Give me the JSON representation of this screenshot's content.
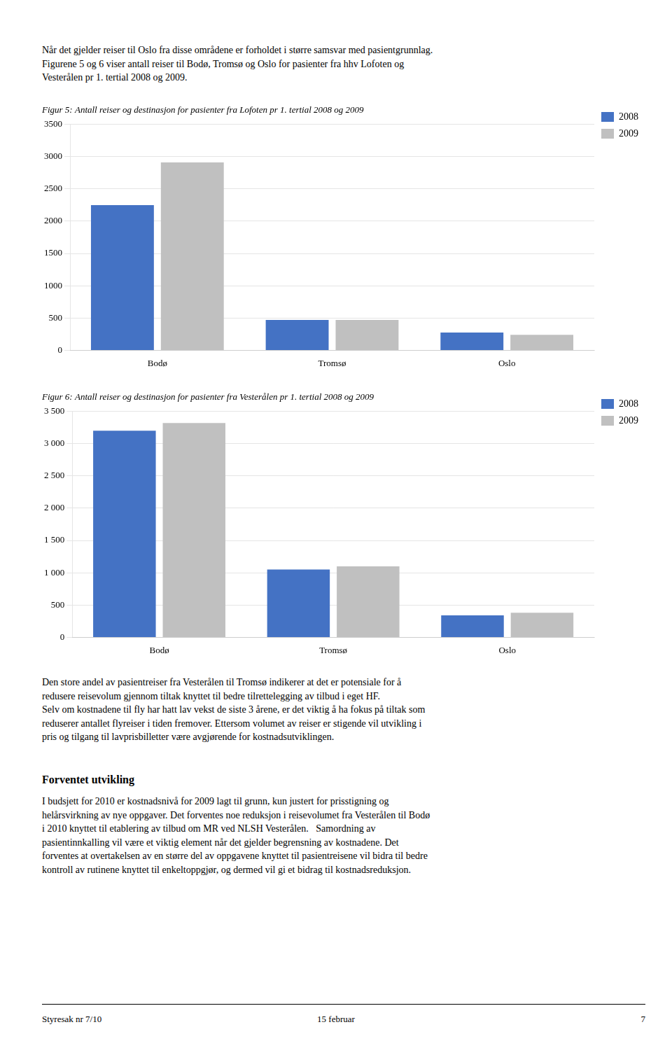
{
  "chart_data": [
    {
      "type": "bar",
      "title": "Figur 5: Antall reiser og destinasjon for pasienter fra Lofoten pr 1. tertial 2008 og 2009",
      "categories": [
        "Bodø",
        "Tromsø",
        "Oslo"
      ],
      "series": [
        {
          "name": "2008",
          "color": "#4472C4",
          "values": [
            2250,
            470,
            275
          ]
        },
        {
          "name": "2009",
          "color": "#C0C0C0",
          "values": [
            2910,
            470,
            240
          ]
        }
      ],
      "ylim": [
        0,
        3500
      ],
      "yticks": [
        0,
        500,
        1000,
        1500,
        2000,
        2500,
        3000,
        3500
      ],
      "grid": true,
      "legend": "right"
    },
    {
      "type": "bar",
      "title": "Figur 6: Antall reiser og destinasjon for pasienter fra Vesterålen pr 1. tertial 2008 og 2009",
      "categories": [
        "Bodø",
        "Tromsø",
        "Oslo"
      ],
      "series": [
        {
          "name": "2008",
          "color": "#4472C4",
          "values": [
            3200,
            1050,
            340
          ]
        },
        {
          "name": "2009",
          "color": "#C0C0C0",
          "values": [
            3320,
            1100,
            380
          ]
        }
      ],
      "ylim": [
        0,
        3500
      ],
      "yticks": [
        0,
        500,
        {
          "value": 1000,
          "label": "1 000"
        },
        {
          "value": 1500,
          "label": "1 500"
        },
        {
          "value": 2000,
          "label": "2 000"
        },
        {
          "value": 2500,
          "label": "2 500"
        },
        {
          "value": 3000,
          "label": "3 000"
        },
        {
          "value": 3500,
          "label": "3 500"
        }
      ],
      "grid": true,
      "legend": "right"
    }
  ],
  "header_text": "Når det gjelder reiser til Oslo fra disse områdene er forholdet i større samsvar med pasientgrunnlag.\nFigurene 5 og 6 viser antall reiser til Bodø, Tromsø og Oslo for pasienter fra hhv Lofoten og\nVesterålen pr 1. tertial 2008 og 2009.",
  "body_text": "Den store andel av pasientreiser fra Vesterålen til Tromsø indikerer at det er potensiale for å\nredusere reisevolum gjennom tiltak knyttet til bedre tilrettelegging av tilbud i eget HF.\nSelv om kostnadene til fly har hatt lav vekst de siste 3 årene, er det viktig å ha fokus på tiltak som\nreduserer antallet flyreiser i tiden fremover. Ettersom volumet av reiser er stigende vil utvikling i\npris og tilgang til lavprisbilletter være avgjørende for kostnadsutviklingen.",
  "bold_header": "Forventet utvikling",
  "body_text2": "I budsjett for 2010 er kostnadsnivå for 2009 lagt til grunn, kun justert for prisstigning og\nhelårsvirkning av nye oppgaver. Det forventes noe reduksjon i reisevolumet fra Vesterålen til Bodø\ni 2010 knyttet til etablering av tilbud om MR ved NLSH Vesterålen.   Samordning av\npasientinnkalling vil være et viktig element når det gjelder begrensning av kostnadene. Det\nforventes at overtakelsen av en større del av oppgavene knyttet til pasientreisene vil bidra til bedre\nkontroll av rutinene knyttet til enkeltoppgjør, og dermed vil gi et bidrag til kostnadsreduksjon.",
  "footer_left": "Styresak nr 7/10",
  "footer_mid": "15 februar",
  "footer_right": "7"
}
